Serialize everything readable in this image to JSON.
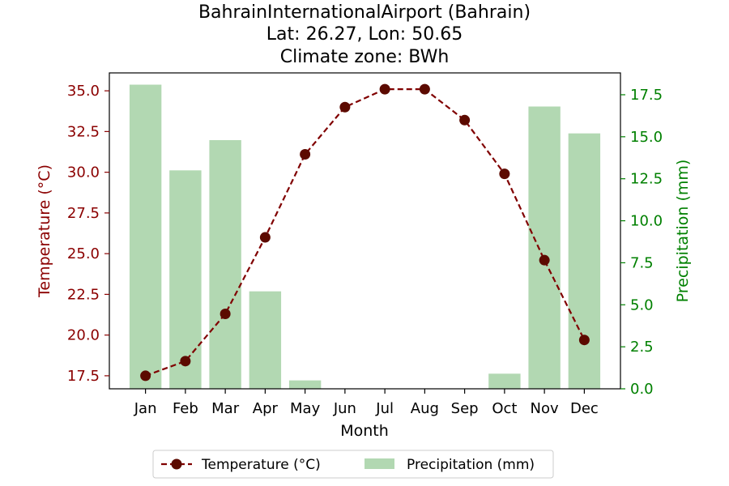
{
  "chart_data": {
    "type": "bar+line",
    "title": {
      "line1": "BahrainInternationalAirport (Bahrain)",
      "line2": "Lat: 26.27, Lon: 50.65",
      "line3": "Climate zone: BWh"
    },
    "xlabel": "Month",
    "ylabel_left": "Temperature (°C)",
    "ylabel_right": "Precipitation (mm)",
    "categories": [
      "Jan",
      "Feb",
      "Mar",
      "Apr",
      "May",
      "Jun",
      "Jul",
      "Aug",
      "Sep",
      "Oct",
      "Nov",
      "Dec"
    ],
    "series": [
      {
        "name": "Temperature (°C)",
        "kind": "line",
        "axis": "left",
        "color": "#800000",
        "marker_color": "#5c0a00",
        "values": [
          17.5,
          18.4,
          21.3,
          26.0,
          31.1,
          34.0,
          35.1,
          35.1,
          33.2,
          29.9,
          24.6,
          19.7
        ]
      },
      {
        "name": "Precipitation (mm)",
        "kind": "bar",
        "axis": "right",
        "color": "#b2d8b2",
        "values": [
          18.1,
          13.0,
          14.8,
          5.8,
          0.5,
          0.0,
          0.0,
          0.0,
          0.0,
          0.9,
          16.8,
          15.2
        ]
      }
    ],
    "ylim_left": [
      16.7,
      36.1
    ],
    "ylim_right": [
      0,
      18.8
    ],
    "yticks_left": [
      "17.5",
      "20.0",
      "22.5",
      "25.0",
      "27.5",
      "30.0",
      "32.5",
      "35.0"
    ],
    "yticks_right": [
      "0.0",
      "2.5",
      "5.0",
      "7.5",
      "10.0",
      "12.5",
      "15.0",
      "17.5"
    ],
    "left_axis_color": "#8b0000",
    "right_axis_color": "#008000",
    "legend": {
      "placement": "bottom-center",
      "labels": [
        "Temperature (°C)",
        "Precipitation (mm)"
      ]
    },
    "grid": false
  }
}
